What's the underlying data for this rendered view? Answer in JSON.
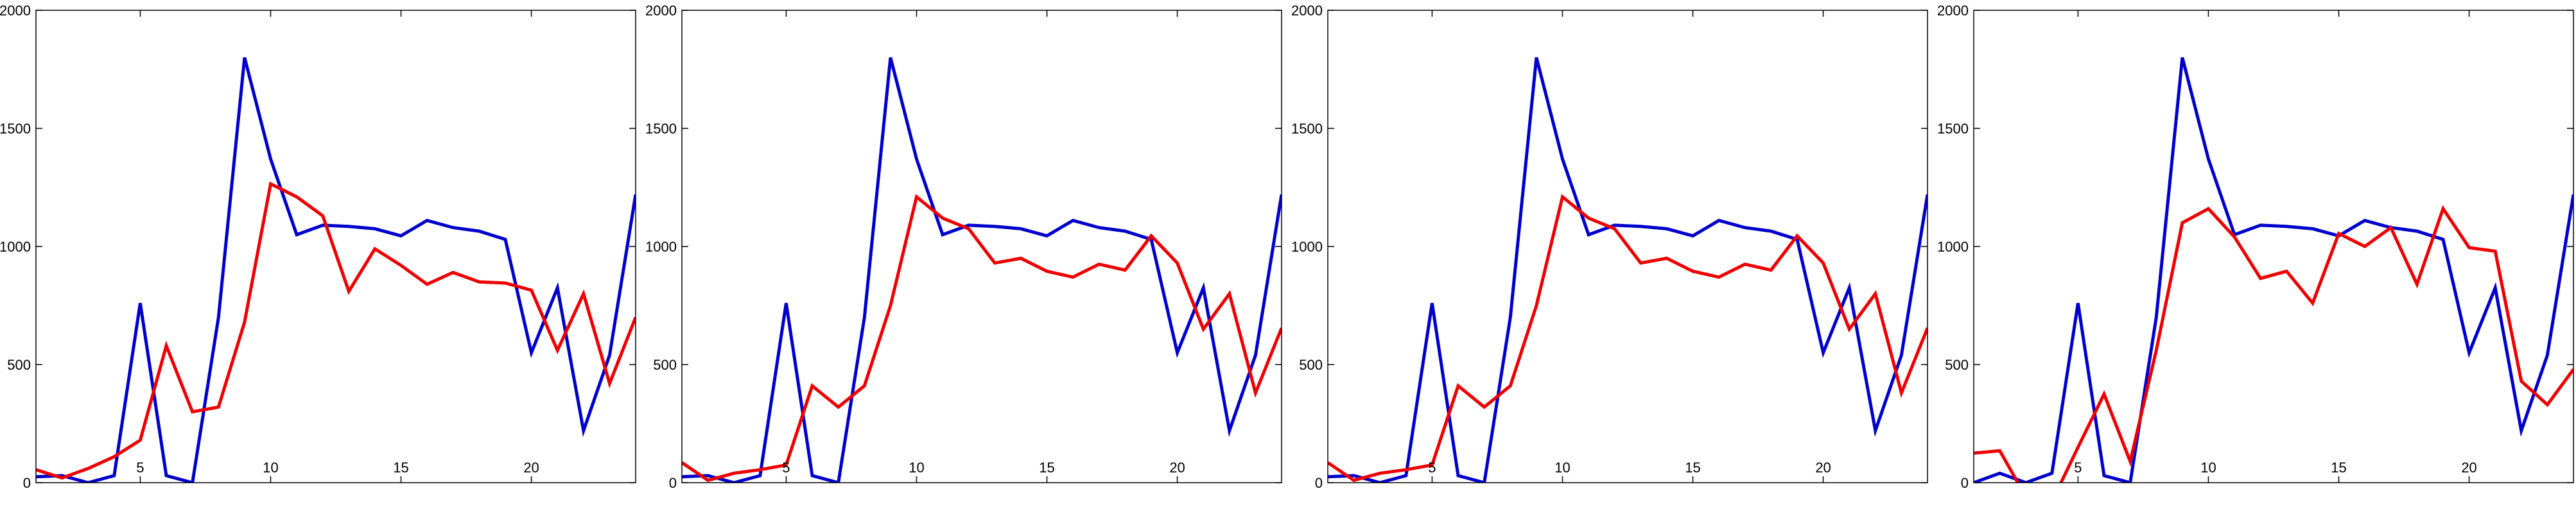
{
  "chart_data": [
    {
      "type": "line",
      "x": [
        1,
        2,
        3,
        4,
        5,
        6,
        7,
        8,
        9,
        10,
        11,
        12,
        13,
        14,
        15,
        16,
        17,
        18,
        19,
        20,
        21,
        22,
        23,
        24
      ],
      "xlim": [
        1,
        24
      ],
      "ylim": [
        0,
        2000
      ],
      "xticks": [
        5,
        10,
        15,
        20
      ],
      "yticks": [
        0,
        500,
        1000,
        1500,
        2000
      ],
      "grid": false,
      "series": [
        {
          "color": "#0000cc",
          "values": [
            25,
            30,
            0,
            30,
            760,
            30,
            0,
            700,
            1800,
            1370,
            1050,
            1090,
            1085,
            1075,
            1045,
            1110,
            1080,
            1065,
            1030,
            550,
            825,
            220,
            540,
            1220
          ]
        },
        {
          "color": "#ee0000",
          "values": [
            55,
            20,
            60,
            110,
            180,
            580,
            300,
            320,
            680,
            1265,
            1210,
            1130,
            810,
            990,
            920,
            840,
            890,
            850,
            845,
            815,
            560,
            800,
            420,
            700
          ]
        }
      ]
    },
    {
      "type": "line",
      "x": [
        1,
        2,
        3,
        4,
        5,
        6,
        7,
        8,
        9,
        10,
        11,
        12,
        13,
        14,
        15,
        16,
        17,
        18,
        19,
        20,
        21,
        22,
        23,
        24
      ],
      "xlim": [
        1,
        24
      ],
      "ylim": [
        0,
        2000
      ],
      "xticks": [
        5,
        10,
        15,
        20
      ],
      "yticks": [
        0,
        500,
        1000,
        1500,
        2000
      ],
      "grid": false,
      "series": [
        {
          "color": "#0000cc",
          "values": [
            25,
            30,
            0,
            30,
            760,
            30,
            0,
            700,
            1800,
            1370,
            1050,
            1090,
            1085,
            1075,
            1045,
            1110,
            1080,
            1065,
            1030,
            550,
            825,
            220,
            540,
            1220
          ]
        },
        {
          "color": "#ee0000",
          "values": [
            85,
            10,
            40,
            55,
            75,
            410,
            320,
            410,
            750,
            1210,
            1120,
            1075,
            930,
            950,
            895,
            870,
            925,
            900,
            1045,
            930,
            650,
            800,
            380,
            655
          ]
        }
      ]
    },
    {
      "type": "line",
      "x": [
        1,
        2,
        3,
        4,
        5,
        6,
        7,
        8,
        9,
        10,
        11,
        12,
        13,
        14,
        15,
        16,
        17,
        18,
        19,
        20,
        21,
        22,
        23,
        24
      ],
      "xlim": [
        1,
        24
      ],
      "ylim": [
        0,
        2000
      ],
      "xticks": [
        5,
        10,
        15,
        20
      ],
      "yticks": [
        0,
        500,
        1000,
        1500,
        2000
      ],
      "grid": false,
      "series": [
        {
          "color": "#0000cc",
          "values": [
            25,
            30,
            0,
            30,
            760,
            30,
            0,
            700,
            1800,
            1370,
            1050,
            1090,
            1085,
            1075,
            1045,
            1110,
            1080,
            1065,
            1030,
            550,
            825,
            220,
            540,
            1220
          ]
        },
        {
          "color": "#ee0000",
          "values": [
            85,
            10,
            40,
            55,
            75,
            410,
            320,
            410,
            750,
            1210,
            1120,
            1075,
            930,
            950,
            895,
            870,
            925,
            900,
            1045,
            930,
            650,
            800,
            380,
            655
          ]
        }
      ]
    },
    {
      "type": "line",
      "x": [
        1,
        2,
        3,
        4,
        5,
        6,
        7,
        8,
        9,
        10,
        11,
        12,
        13,
        14,
        15,
        16,
        17,
        18,
        19,
        20,
        21,
        22,
        23,
        24
      ],
      "xlim": [
        1,
        24
      ],
      "ylim": [
        0,
        2000
      ],
      "xticks": [
        5,
        10,
        15,
        20
      ],
      "yticks": [
        0,
        500,
        1000,
        1500,
        2000
      ],
      "grid": false,
      "series": [
        {
          "color": "#0000cc",
          "values": [
            0,
            40,
            0,
            40,
            760,
            30,
            0,
            700,
            1800,
            1370,
            1050,
            1090,
            1085,
            1075,
            1045,
            1110,
            1080,
            1065,
            1030,
            550,
            825,
            220,
            540,
            1220
          ]
        },
        {
          "color": "#ee0000",
          "values": [
            125,
            135,
            -60,
            -80,
            150,
            375,
            90,
            560,
            1100,
            1160,
            1040,
            865,
            895,
            760,
            1055,
            1000,
            1080,
            840,
            1160,
            995,
            980,
            430,
            330,
            480
          ]
        }
      ]
    }
  ]
}
